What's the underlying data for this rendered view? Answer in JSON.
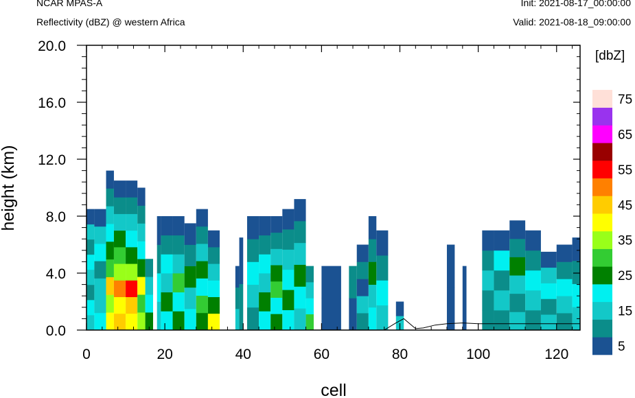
{
  "header": {
    "model": "NCAR MPAS-A",
    "title": "Reflectivity (dBZ) @ western Africa",
    "init": "Init: 2021-08-17_00:00:00",
    "valid": "Valid: 2021-08-18_09:00:00"
  },
  "chart_data": {
    "type": "heatmap",
    "xlabel": "cell",
    "ylabel": "height (km)",
    "xlim": [
      0,
      126
    ],
    "ylim": [
      0,
      20
    ],
    "x_ticks": [
      0,
      20,
      40,
      60,
      80,
      100,
      120
    ],
    "x_tick_labels": [
      "0",
      "20",
      "40",
      "60",
      "80",
      "100",
      "120"
    ],
    "y_ticks": [
      0,
      4,
      8,
      12,
      16,
      20
    ],
    "y_tick_labels": [
      "0.0",
      "4.0",
      "8.0",
      "12.0",
      "16.0",
      "20.0"
    ],
    "colorbar": {
      "unit_label": "[dbZ]",
      "levels": [
        5,
        10,
        15,
        20,
        25,
        30,
        35,
        40,
        45,
        50,
        55,
        60,
        65,
        70,
        75
      ],
      "colors": [
        "#1b5292",
        "#0b8d8a",
        "#13c8c8",
        "#00f0f0",
        "#008000",
        "#33cc33",
        "#99ff19",
        "#ffff00",
        "#ffcc00",
        "#ff8000",
        "#ff0000",
        "#990000",
        "#ff00ff",
        "#9933ee",
        "#ffe0d8"
      ],
      "labels": [
        "5",
        "15",
        "25",
        "35",
        "45",
        "55",
        "65",
        "75"
      ],
      "label_levels": [
        5,
        15,
        25,
        35,
        45,
        55,
        65,
        75
      ]
    },
    "terrain": [
      [
        0,
        0
      ],
      [
        56,
        0
      ],
      [
        58,
        0
      ],
      [
        76,
        0
      ],
      [
        79,
        0.5
      ],
      [
        81,
        0.8
      ],
      [
        84,
        0.1
      ],
      [
        86,
        0.15
      ],
      [
        89,
        0.35
      ],
      [
        92,
        0.45
      ],
      [
        96,
        0.5
      ],
      [
        100,
        0.45
      ],
      [
        105,
        0.45
      ],
      [
        110,
        0.45
      ],
      [
        115,
        0.45
      ],
      [
        120,
        0.45
      ],
      [
        126,
        0.45
      ]
    ],
    "columns": [
      {
        "x": [
          0,
          2
        ],
        "top": 8.5,
        "dbz": [
          15,
          20,
          10,
          15,
          20,
          10,
          15,
          5
        ]
      },
      {
        "x": [
          2,
          5
        ],
        "top": 8.5,
        "dbz": [
          20,
          15,
          15,
          10,
          20,
          15,
          5
        ]
      },
      {
        "x": [
          5,
          7
        ],
        "top": 11.2,
        "dbz": [
          40,
          35,
          45,
          30,
          25,
          20,
          15,
          10,
          5
        ]
      },
      {
        "x": [
          7,
          10
        ],
        "top": 10.5,
        "dbz": [
          45,
          40,
          50,
          35,
          30,
          25,
          15,
          10,
          5
        ]
      },
      {
        "x": [
          10,
          13
        ],
        "top": 10.5,
        "dbz": [
          40,
          45,
          55,
          35,
          25,
          20,
          15,
          10,
          5
        ]
      },
      {
        "x": [
          13,
          15
        ],
        "top": 10.0,
        "dbz": [
          35,
          30,
          40,
          25,
          20,
          15,
          10,
          5
        ]
      },
      {
        "x": [
          15,
          17
        ],
        "top": 5.0,
        "dbz": [
          25,
          20,
          15,
          10
        ]
      },
      {
        "x": [
          18,
          19
        ],
        "top": 8.0,
        "dbz": [
          15,
          20,
          10,
          5
        ]
      },
      {
        "x": [
          19,
          22
        ],
        "top": 8.0,
        "dbz": [
          20,
          25,
          15,
          20,
          10,
          5
        ]
      },
      {
        "x": [
          22,
          25
        ],
        "top": 8.0,
        "dbz": [
          25,
          20,
          30,
          15,
          10,
          5
        ]
      },
      {
        "x": [
          25,
          28
        ],
        "top": 7.5,
        "dbz": [
          20,
          15,
          25,
          10,
          5
        ]
      },
      {
        "x": [
          28,
          31
        ],
        "top": 8.5,
        "dbz": [
          25,
          30,
          20,
          25,
          15,
          10,
          5
        ]
      },
      {
        "x": [
          31,
          34
        ],
        "top": 7.0,
        "dbz": [
          40,
          25,
          20,
          15,
          10,
          5
        ]
      },
      {
        "x": [
          38,
          39
        ],
        "top": 4.5,
        "dbz": [
          15,
          10,
          5
        ]
      },
      {
        "x": [
          39,
          40
        ],
        "top": 6.5,
        "dbz": [
          10,
          5
        ]
      },
      {
        "x": [
          41,
          44
        ],
        "top": 8.0,
        "dbz": [
          10,
          15,
          20,
          10,
          5
        ]
      },
      {
        "x": [
          44,
          47
        ],
        "top": 8.0,
        "dbz": [
          20,
          25,
          15,
          20,
          10,
          5
        ]
      },
      {
        "x": [
          47,
          50
        ],
        "top": 8.0,
        "dbz": [
          25,
          20,
          30,
          25,
          15,
          10,
          5
        ]
      },
      {
        "x": [
          50,
          53
        ],
        "top": 8.5,
        "dbz": [
          20,
          25,
          20,
          15,
          10,
          5
        ]
      },
      {
        "x": [
          53,
          56
        ],
        "top": 9.2,
        "dbz": [
          15,
          20,
          25,
          15,
          10,
          5
        ]
      },
      {
        "x": [
          56,
          58
        ],
        "top": 4.5,
        "dbz": [
          30,
          20,
          15,
          10
        ]
      },
      {
        "x": [
          60,
          65
        ],
        "top": 4.5,
        "dbz": [
          5,
          5
        ]
      },
      {
        "x": [
          67,
          69
        ],
        "top": 4.5,
        "dbz": [
          5,
          10
        ]
      },
      {
        "x": [
          69,
          72
        ],
        "top": 6.0,
        "dbz": [
          10,
          15,
          5,
          10,
          5
        ]
      },
      {
        "x": [
          72,
          74
        ],
        "top": 8.0,
        "dbz": [
          20,
          15,
          25,
          10,
          5
        ]
      },
      {
        "x": [
          74,
          77
        ],
        "top": 7.0,
        "dbz": [
          15,
          20,
          10,
          5
        ]
      },
      {
        "x": [
          79,
          81
        ],
        "top": 2.0,
        "dbz": [
          15,
          5
        ]
      },
      {
        "x": [
          92,
          94
        ],
        "top": 6.0,
        "dbz": [
          5,
          5
        ]
      },
      {
        "x": [
          96,
          97
        ],
        "top": 4.5,
        "dbz": [
          5
        ]
      },
      {
        "x": [
          101,
          104
        ],
        "top": 7.0,
        "dbz": [
          10,
          10,
          15,
          10,
          5
        ]
      },
      {
        "x": [
          104,
          108
        ],
        "top": 7.0,
        "dbz": [
          10,
          15,
          10,
          20,
          5
        ]
      },
      {
        "x": [
          108,
          112
        ],
        "top": 7.7,
        "dbz": [
          15,
          10,
          15,
          25,
          10,
          5
        ]
      },
      {
        "x": [
          112,
          116
        ],
        "top": 7.0,
        "dbz": [
          10,
          15,
          20,
          10,
          5
        ]
      },
      {
        "x": [
          116,
          120
        ],
        "top": 5.5,
        "dbz": [
          15,
          10,
          20,
          15,
          5
        ]
      },
      {
        "x": [
          120,
          124
        ],
        "top": 6.0,
        "dbz": [
          10,
          15,
          20,
          10,
          5
        ]
      },
      {
        "x": [
          124,
          126
        ],
        "top": 6.5,
        "dbz": [
          15,
          20,
          10,
          5
        ]
      }
    ]
  }
}
